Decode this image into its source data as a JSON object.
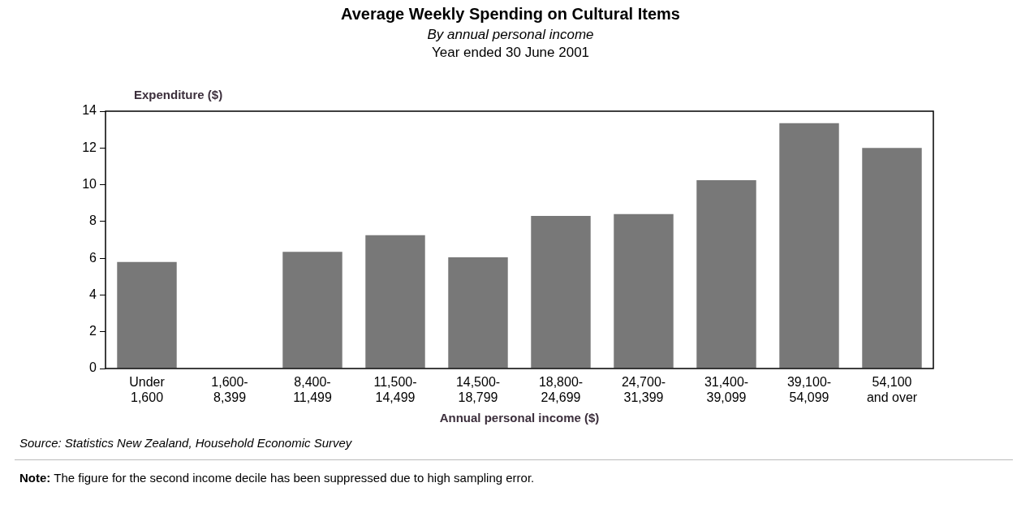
{
  "chart_data": {
    "type": "bar",
    "title": "Average Weekly Spending on Cultural Items",
    "subtitle": "By annual personal income\nYear ended 30 June 2001",
    "ylabel": "Expenditure ($)",
    "xlabel": "Annual personal income ($)",
    "categories": [
      "Under\n1,600",
      "1,600-\n8,399",
      "8,400-\n11,499",
      "11,500-\n14,499",
      "14,500-\n18,799",
      "18,800-\n24,699",
      "24,700-\n31,399",
      "31,400-\n39,099",
      "39,100-\n54,099",
      "54,100\nand over"
    ],
    "values": [
      5.8,
      null,
      6.35,
      7.25,
      6.05,
      8.3,
      8.4,
      10.25,
      13.35,
      12.0
    ],
    "color": "#787878",
    "ylim": [
      0,
      14
    ],
    "yticks": [
      0,
      2,
      4,
      6,
      8,
      10,
      12,
      14
    ],
    "grid": false,
    "legend": false,
    "annotations": [
      "Source: Statistics New Zealand, Household Economic Survey",
      "Note: The figure for the second income decile has been suppressed due to high sampling error."
    ]
  }
}
